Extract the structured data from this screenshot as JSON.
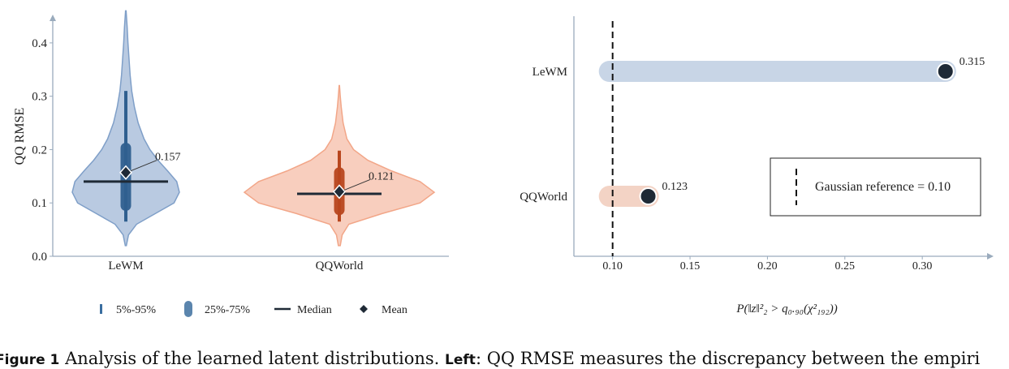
{
  "chart_data": [
    {
      "type": "violin",
      "ylabel": "QQ RMSE",
      "ylim": [
        0,
        0.45
      ],
      "yticks": [
        0.0,
        0.1,
        0.2,
        0.3,
        0.4
      ],
      "ytick_labels": [
        "0.0",
        "0.1",
        "0.2",
        "0.3",
        "0.4"
      ],
      "categories": [
        "LeWM",
        "QQWorld"
      ],
      "series": [
        {
          "name": "LeWM",
          "color": "#7f9fc8",
          "dark_color": "#2f5f8f",
          "min": 0.02,
          "max": 0.46,
          "p5": 0.065,
          "p95": 0.31,
          "q1": 0.095,
          "q3": 0.203,
          "median": 0.14,
          "mean": 0.157,
          "mean_label": "0.157",
          "profile": [
            [
              0.02,
              0.01
            ],
            [
              0.04,
              0.05
            ],
            [
              0.06,
              0.2
            ],
            [
              0.08,
              0.55
            ],
            [
              0.1,
              0.9
            ],
            [
              0.12,
              1.0
            ],
            [
              0.14,
              0.95
            ],
            [
              0.16,
              0.78
            ],
            [
              0.18,
              0.6
            ],
            [
              0.2,
              0.45
            ],
            [
              0.22,
              0.34
            ],
            [
              0.25,
              0.23
            ],
            [
              0.28,
              0.16
            ],
            [
              0.31,
              0.11
            ],
            [
              0.34,
              0.08
            ],
            [
              0.37,
              0.06
            ],
            [
              0.4,
              0.04
            ],
            [
              0.43,
              0.025
            ],
            [
              0.46,
              0.005
            ]
          ]
        },
        {
          "name": "QQWorld",
          "color": "#f2a688",
          "dark_color": "#b8461e",
          "min": 0.02,
          "max": 0.32,
          "p5": 0.065,
          "p95": 0.198,
          "q1": 0.087,
          "q3": 0.157,
          "median": 0.117,
          "mean": 0.121,
          "mean_label": "0.121",
          "profile": [
            [
              0.02,
              0.01
            ],
            [
              0.04,
              0.03
            ],
            [
              0.06,
              0.1
            ],
            [
              0.08,
              0.45
            ],
            [
              0.1,
              0.85
            ],
            [
              0.12,
              1.0
            ],
            [
              0.14,
              0.85
            ],
            [
              0.16,
              0.55
            ],
            [
              0.18,
              0.3
            ],
            [
              0.2,
              0.15
            ],
            [
              0.22,
              0.08
            ],
            [
              0.25,
              0.04
            ],
            [
              0.28,
              0.02
            ],
            [
              0.3,
              0.01
            ],
            [
              0.32,
              0.002
            ]
          ]
        }
      ],
      "legend": {
        "position": "bottom",
        "items": [
          {
            "label": "5%-95%",
            "marker": "thin-bar"
          },
          {
            "label": "25%-75%",
            "marker": "thick-bar"
          },
          {
            "label": "Median",
            "marker": "line"
          },
          {
            "label": "Mean",
            "marker": "diamond"
          }
        ]
      }
    },
    {
      "type": "bar",
      "orientation": "horizontal",
      "categories": [
        "LeWM",
        "QQWorld"
      ],
      "values": [
        0.315,
        0.123
      ],
      "value_labels": [
        "0.315",
        "0.123"
      ],
      "colors": [
        "#c8d5e6",
        "#f3d3c5"
      ],
      "xlim": [
        0.075,
        0.345
      ],
      "xticks": [
        0.1,
        0.15,
        0.2,
        0.25,
        0.3
      ],
      "xtick_labels": [
        "0.10",
        "0.15",
        "0.20",
        "0.25",
        "0.30"
      ],
      "xlabel": "P(‖z‖²₂ > q₀.₉₀(χ²₁₉₂))",
      "reference": {
        "value": 0.1,
        "label": "Gaussian reference = 0.10"
      },
      "legend": {
        "position": "lower-right"
      }
    }
  ],
  "caption": {
    "figure": "Figure 1",
    "text": "Analysis of the learned latent distributions.",
    "left_label": "Left",
    "left_text": ": QQ RMSE measures the discrepancy between the empiri"
  }
}
